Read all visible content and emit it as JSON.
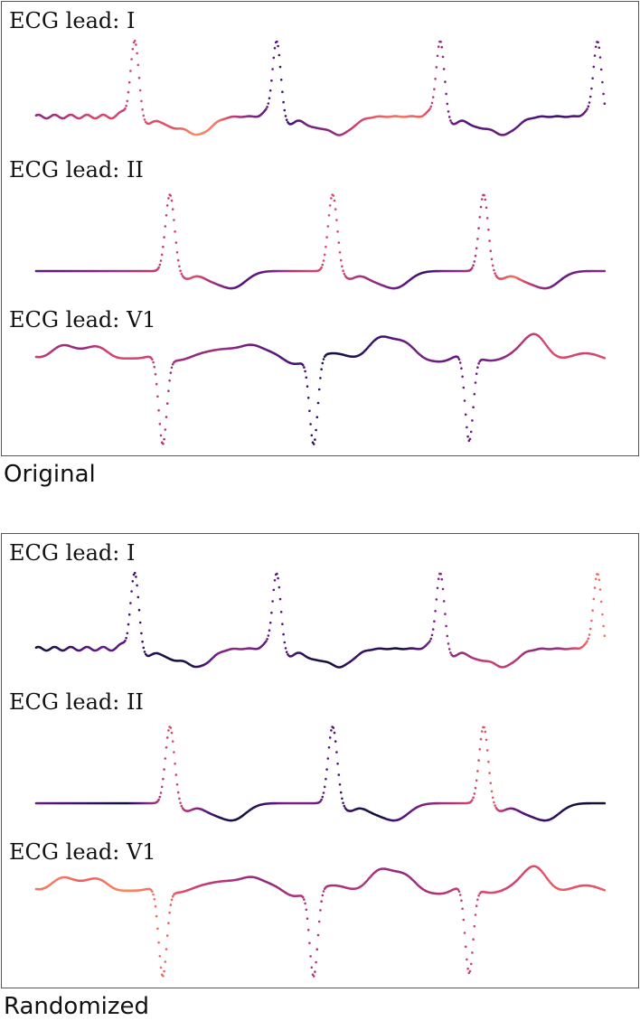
{
  "colormap": [
    "#000004",
    "#1d1147",
    "#51127c",
    "#822681",
    "#b73779",
    "#e75263",
    "#fc8961",
    "#fec287",
    "#fcfdbf"
  ],
  "chart_data": [
    {
      "type": "scatter",
      "caption": "Original",
      "leads": [
        {
          "label": "ECG lead: I",
          "color_sequence": [
            0.4,
            0.45,
            0.55,
            0.58,
            0.55,
            0.6,
            0.62,
            0.75,
            0.7,
            0.45,
            0.3,
            0.2,
            0.35,
            0.4,
            0.55,
            0.65,
            0.7,
            0.65,
            0.35,
            0.25,
            0.3,
            0.3,
            0.25,
            0.2,
            0.3,
            0.3
          ]
        },
        {
          "label": "ECG lead: II",
          "color_sequence": [
            0.3,
            0.3,
            0.35,
            0.4,
            0.45,
            0.5,
            0.55,
            0.6,
            0.4,
            0.25,
            0.3,
            0.45,
            0.55,
            0.6,
            0.5,
            0.4,
            0.3,
            0.2,
            0.35,
            0.45,
            0.55,
            0.7,
            0.45,
            0.3,
            0.35,
            0.4
          ]
        },
        {
          "label": "ECG lead: V1",
          "color_sequence": [
            0.55,
            0.45,
            0.4,
            0.55,
            0.6,
            0.55,
            0.45,
            0.4,
            0.45,
            0.35,
            0.3,
            0.25,
            0.2,
            0.1,
            0.15,
            0.2,
            0.3,
            0.35,
            0.3,
            0.3,
            0.35,
            0.45,
            0.55,
            0.6,
            0.55,
            0.6
          ]
        }
      ]
    },
    {
      "type": "scatter",
      "caption": "Randomized",
      "leads": [
        {
          "label": "ECG lead: I",
          "color_sequence": [
            0.1,
            0.15,
            0.25,
            0.3,
            0.25,
            0.15,
            0.1,
            0.15,
            0.35,
            0.4,
            0.3,
            0.25,
            0.15,
            0.1,
            0.2,
            0.15,
            0.1,
            0.3,
            0.4,
            0.45,
            0.55,
            0.5,
            0.4,
            0.45,
            0.65,
            0.7
          ]
        },
        {
          "label": "ECG lead: II",
          "color_sequence": [
            0.3,
            0.25,
            0.2,
            0.15,
            0.1,
            0.4,
            0.6,
            0.4,
            0.15,
            0.1,
            0.2,
            0.35,
            0.35,
            0.25,
            0.15,
            0.1,
            0.25,
            0.35,
            0.45,
            0.55,
            0.65,
            0.3,
            0.2,
            0.15,
            0.1,
            0.1
          ]
        },
        {
          "label": "ECG lead: V1",
          "color_sequence": [
            0.7,
            0.72,
            0.65,
            0.7,
            0.75,
            0.7,
            0.65,
            0.55,
            0.5,
            0.45,
            0.4,
            0.45,
            0.5,
            0.45,
            0.5,
            0.45,
            0.4,
            0.45,
            0.5,
            0.55,
            0.6,
            0.55,
            0.6,
            0.65,
            0.6,
            0.65
          ]
        }
      ]
    }
  ]
}
